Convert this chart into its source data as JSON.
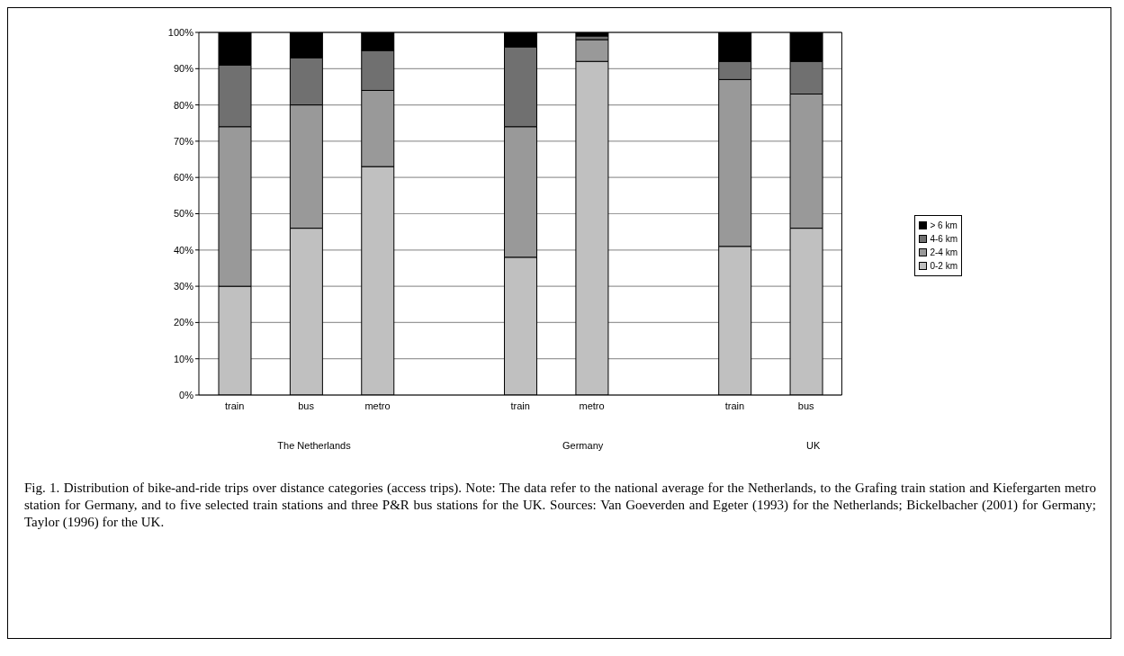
{
  "chart_data": {
    "type": "bar",
    "stacked": true,
    "categories": [
      "train",
      "bus",
      "metro",
      null,
      "train",
      "metro",
      null,
      "train",
      "bus"
    ],
    "series": [
      {
        "name": "0-2 km",
        "color": "#c0c0c0",
        "values": [
          30,
          46,
          63,
          null,
          38,
          92,
          null,
          41,
          46
        ]
      },
      {
        "name": "2-4 km",
        "color": "#999999",
        "values": [
          44,
          34,
          21,
          null,
          36,
          6,
          null,
          46,
          37
        ]
      },
      {
        "name": "4-6 km",
        "color": "#707070",
        "values": [
          17,
          13,
          11,
          null,
          22,
          1,
          null,
          5,
          9
        ]
      },
      {
        "name": "> 6 km",
        "color": "#000000",
        "values": [
          9,
          7,
          5,
          null,
          4,
          1,
          null,
          8,
          8
        ]
      }
    ],
    "ylim": [
      0,
      100
    ],
    "yticks": [
      {
        "value": 0,
        "label": "0%"
      },
      {
        "value": 10,
        "label": "10%"
      },
      {
        "value": 20,
        "label": "20%"
      },
      {
        "value": 30,
        "label": "30%"
      },
      {
        "value": 40,
        "label": "40%"
      },
      {
        "value": 50,
        "label": "50%"
      },
      {
        "value": 60,
        "label": "60%"
      },
      {
        "value": 70,
        "label": "70%"
      },
      {
        "value": 80,
        "label": "80%"
      },
      {
        "value": 90,
        "label": "90%"
      },
      {
        "value": 100,
        "label": "100%"
      }
    ],
    "grid": "y",
    "legend": "right",
    "annotations": [
      "The Netherlands",
      "Germany",
      "UK",
      "Fig. 1. Distribution of bike-and-ride trips over distance categories (access trips). Note: The data refer to the national average for the Netherlands, to the Grafing train station and Kiefergarten metro station for Germany, and to five selected train stations and three P&R bus stations for the UK. Sources: Van Goeverden and Egeter (1993) for the Netherlands; Bickelbacher (2001) for Germany; Taylor (1996) for the UK."
    ]
  }
}
